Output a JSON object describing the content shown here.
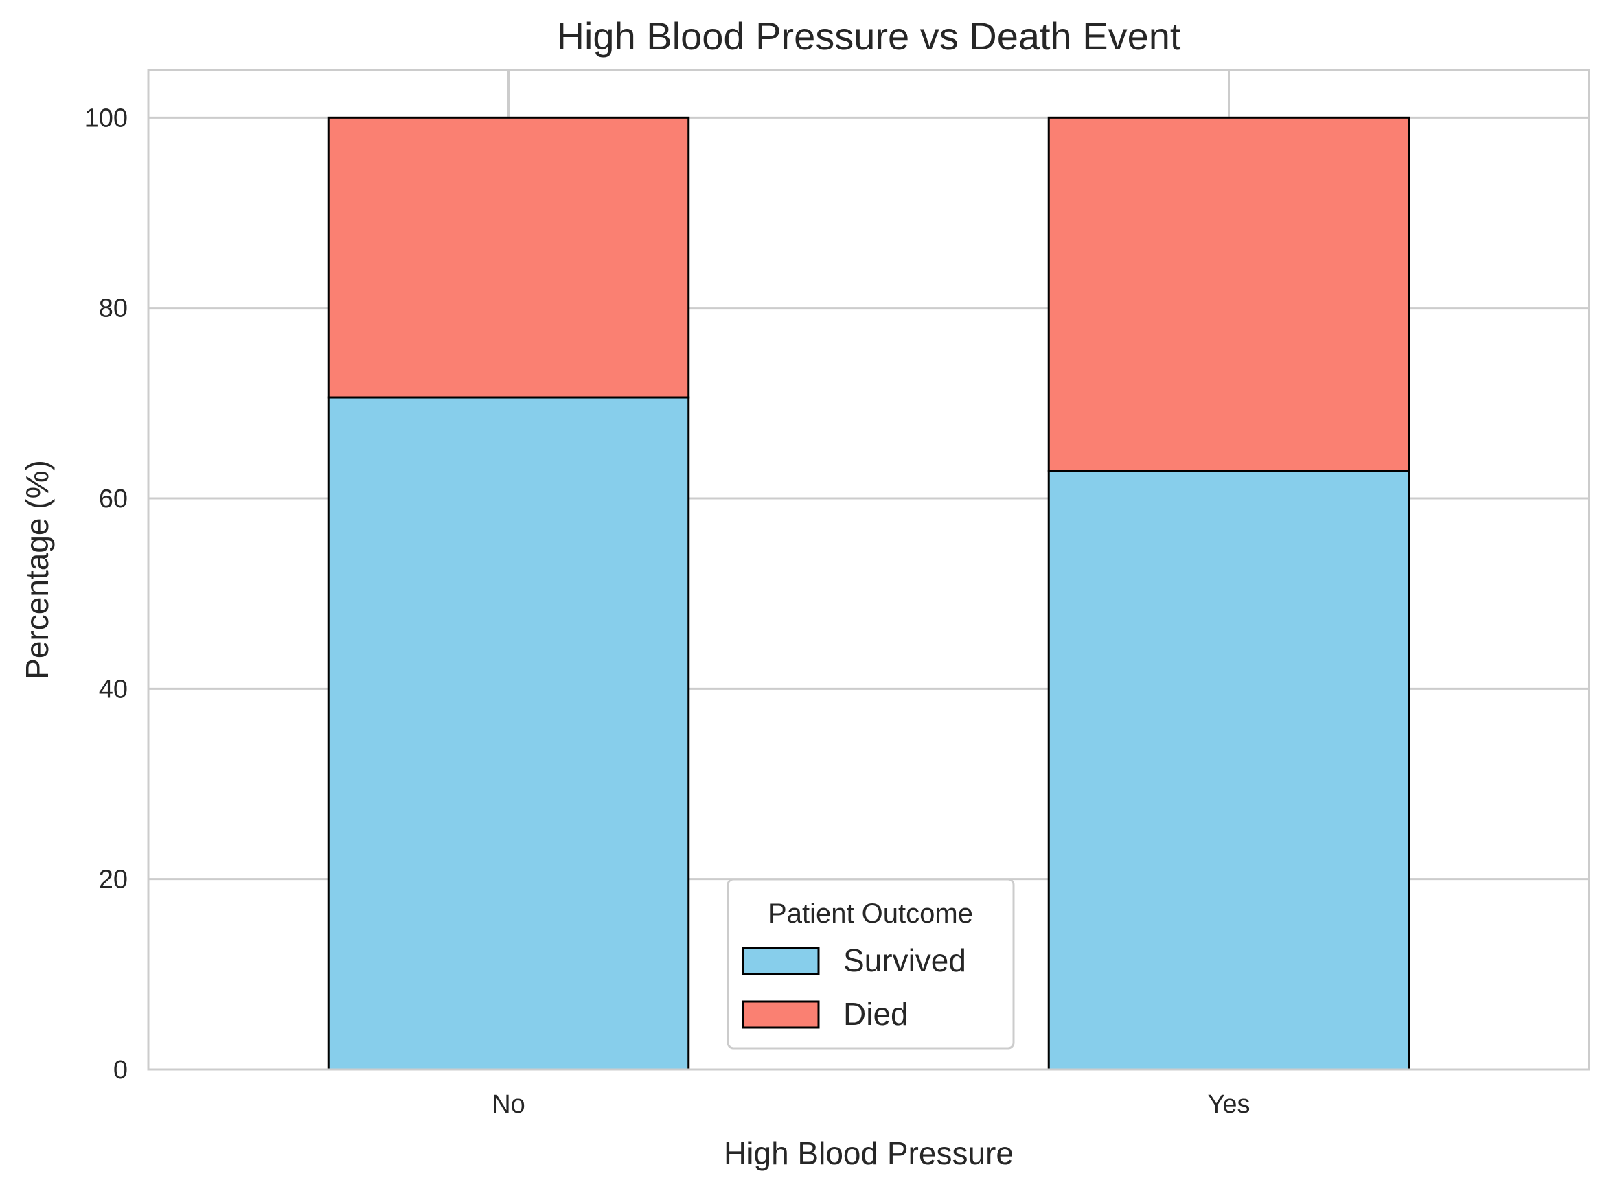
{
  "chart_data": {
    "type": "bar",
    "stacked": true,
    "title": "High Blood Pressure vs Death Event",
    "xlabel": "High Blood Pressure",
    "ylabel": "Percentage (%)",
    "categories": [
      "No",
      "Yes"
    ],
    "series": [
      {
        "name": "Survived",
        "color": "#87CEEB",
        "values": [
          70.6,
          62.9
        ]
      },
      {
        "name": "Died",
        "color": "#FA8072",
        "values": [
          29.4,
          37.1
        ]
      }
    ],
    "ylim": [
      0,
      105
    ],
    "yticks": [
      0,
      20,
      40,
      60,
      80,
      100
    ],
    "grid": true,
    "legend": {
      "title": "Patient Outcome",
      "placement": "lower-center"
    }
  }
}
